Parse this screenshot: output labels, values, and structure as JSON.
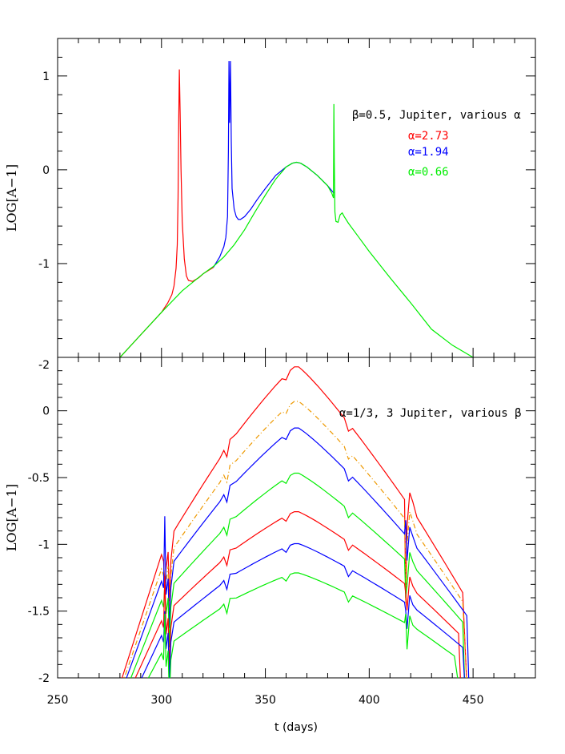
{
  "chart_data": [
    {
      "type": "line",
      "panel": "top",
      "xlim": [
        250,
        480
      ],
      "ylim": [
        -2,
        1.4
      ],
      "xlabel": "",
      "ylabel": "LOG[A−1]",
      "yticks": [
        {
          "value": -2,
          "label": "-2"
        },
        {
          "value": -1,
          "label": "-1"
        },
        {
          "value": 0,
          "label": "0"
        },
        {
          "value": 1,
          "label": "1"
        }
      ],
      "annotations": {
        "title": "β=0.5, Jupiter, various α",
        "entries": [
          {
            "text": "α=2.73",
            "color": "#ff0000"
          },
          {
            "text": "α=1.94",
            "color": "#0000ff"
          },
          {
            "text": "α=0.66",
            "color": "#00ee00"
          }
        ]
      },
      "series": [
        {
          "name": "α=2.73",
          "color": "#ff0000",
          "dash": "",
          "x": [
            280,
            285,
            290,
            295,
            300,
            303,
            305,
            306,
            307,
            307.6,
            308,
            308.3,
            308.6,
            309,
            309.4,
            310,
            311,
            312,
            313,
            315,
            318,
            320,
            325
          ],
          "y": [
            -2.0,
            -1.88,
            -1.76,
            -1.64,
            -1.52,
            -1.42,
            -1.33,
            -1.24,
            -1.05,
            -0.8,
            -0.3,
            0.5,
            1.07,
            0.6,
            0.0,
            -0.55,
            -0.95,
            -1.13,
            -1.18,
            -1.19,
            -1.15,
            -1.11,
            -1.04
          ]
        },
        {
          "name": "α=1.94",
          "color": "#0000ff",
          "dash": "",
          "x": [
            325,
            328,
            330,
            331,
            331.8,
            332.2,
            332.5,
            332.8,
            333.2,
            333.6,
            334,
            335,
            336,
            337,
            338,
            340,
            343,
            346,
            350,
            355,
            360,
            363,
            365,
            367,
            370,
            375,
            380,
            383
          ],
          "y": [
            -1.04,
            -0.93,
            -0.82,
            -0.72,
            -0.5,
            0.2,
            1.16,
            0.5,
            1.16,
            0.3,
            -0.2,
            -0.42,
            -0.5,
            -0.53,
            -0.53,
            -0.5,
            -0.42,
            -0.32,
            -0.2,
            -0.06,
            0.03,
            0.07,
            0.08,
            0.07,
            0.03,
            -0.06,
            -0.17,
            -0.25
          ]
        },
        {
          "name": "α=0.66",
          "color": "#00ee00",
          "dash": "",
          "x": [
            280,
            290,
            300,
            310,
            320,
            325,
            330,
            335,
            340,
            345,
            350,
            355,
            360,
            363,
            365,
            367,
            370,
            375,
            380,
            382,
            382.8,
            383,
            383.2,
            383.5,
            384,
            385,
            386,
            387,
            388,
            390,
            395,
            400,
            410,
            420,
            430,
            440,
            450
          ],
          "y": [
            -2.0,
            -1.76,
            -1.52,
            -1.29,
            -1.11,
            -1.03,
            -0.93,
            -0.8,
            -0.64,
            -0.45,
            -0.27,
            -0.1,
            0.03,
            0.07,
            0.08,
            0.07,
            0.03,
            -0.06,
            -0.17,
            -0.25,
            -0.3,
            0.7,
            0.1,
            -0.45,
            -0.55,
            -0.56,
            -0.48,
            -0.46,
            -0.5,
            -0.57,
            -0.72,
            -0.87,
            -1.15,
            -1.42,
            -1.7,
            -1.87,
            -2.0
          ]
        }
      ]
    },
    {
      "type": "line",
      "panel": "bottom",
      "xlim": [
        250,
        480
      ],
      "ylim": [
        -2,
        0.4
      ],
      "xlabel": "t (days)",
      "ylabel": "LOG[A−1]",
      "xticks": [
        {
          "value": 250,
          "label": "250"
        },
        {
          "value": 300,
          "label": "300"
        },
        {
          "value": 350,
          "label": "350"
        },
        {
          "value": 400,
          "label": "400"
        },
        {
          "value": 450,
          "label": "450"
        }
      ],
      "yticks": [
        {
          "value": -2,
          "label": "-2"
        },
        {
          "value": -1.5,
          "label": "-1.5"
        },
        {
          "value": -1,
          "label": "-1"
        },
        {
          "value": -0.5,
          "label": "-0.5"
        },
        {
          "value": 0,
          "label": "0"
        }
      ],
      "top_label": "-2",
      "annotations": {
        "title": "α=1/3, 3 Jupiter, various β"
      },
      "series": [
        {
          "color": "#ff0000",
          "dash": "",
          "peak": 0.34,
          "valley": -1.45,
          "start": 280,
          "end": 447,
          "spike1": -1.3,
          "spike2": -1.42
        },
        {
          "color": "#ee9900",
          "dash": "6,3,1,3",
          "peak": 0.08,
          "valley": -1.5,
          "start": 281,
          "end": 447,
          "spike1": -1.35,
          "spike2": -1.45
        },
        {
          "color": "#0000ff",
          "dash": "",
          "peak": -0.12,
          "valley": -1.55,
          "start": 282,
          "end": 448,
          "spike1": -0.79,
          "spike2": -0.82
        },
        {
          "color": "#00ee00",
          "dash": "",
          "peak": -0.46,
          "valley": -1.62,
          "start": 284,
          "end": 446,
          "spike1": -1.3,
          "spike2": -1.4
        },
        {
          "color": "#ff0000",
          "dash": "",
          "peak": -0.75,
          "valley": -1.72,
          "start": 286,
          "end": 444,
          "spike1": -1.24,
          "spike2": -1.37
        },
        {
          "color": "#0000ff",
          "dash": "",
          "peak": -0.99,
          "valley": -1.78,
          "start": 289,
          "end": 446,
          "spike1": -1.5,
          "spike2": -1.5
        },
        {
          "color": "#00ee00",
          "dash": "",
          "peak": -1.21,
          "valley": -1.88,
          "start": 292,
          "end": 443,
          "spike1": -1.52,
          "spike2": -1.52
        }
      ]
    }
  ]
}
